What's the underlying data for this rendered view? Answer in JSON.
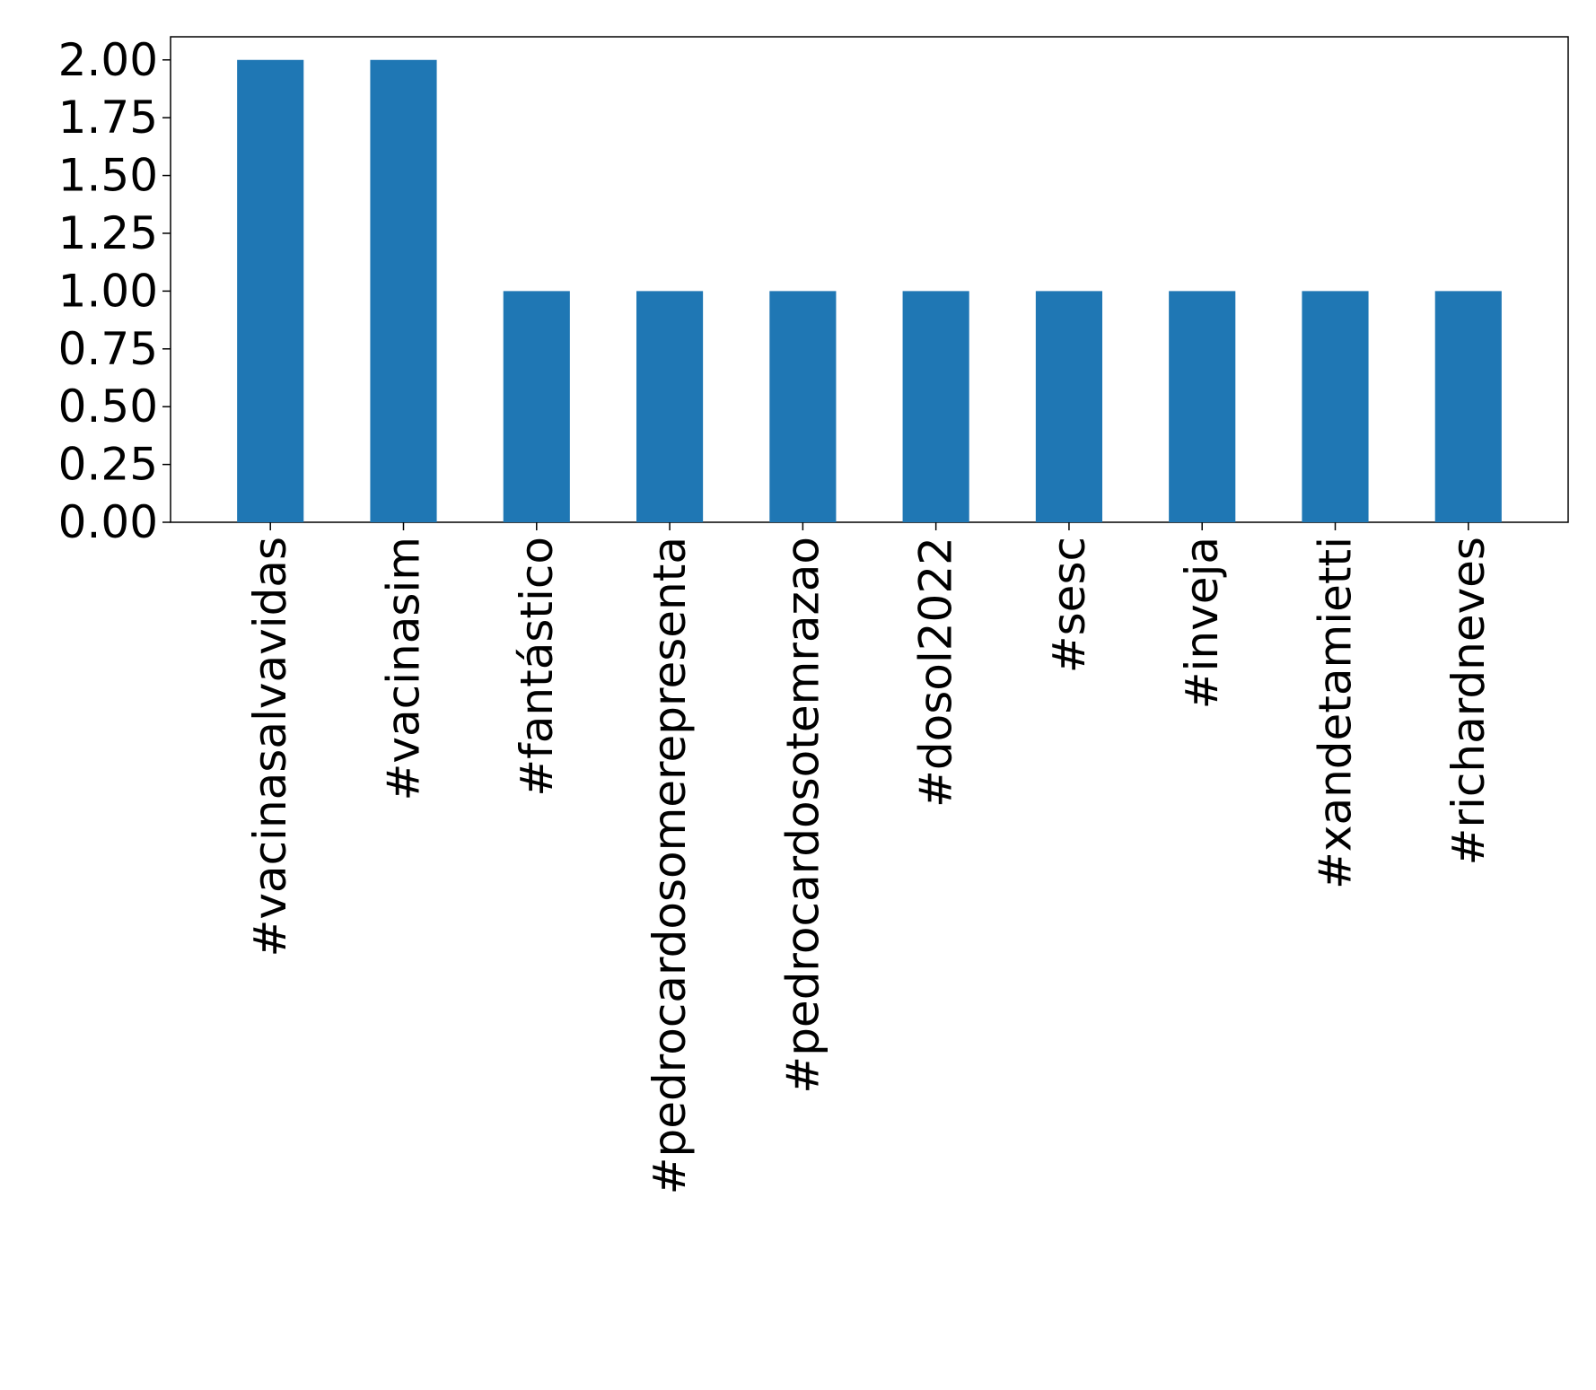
{
  "chart_data": {
    "type": "bar",
    "title": "",
    "xlabel": "",
    "ylabel": "",
    "categories": [
      "#vacinasalvavidas",
      "#vacinasim",
      "#fantástico",
      "#pedrocardosomerepresenta",
      "#pedrocardosotemrazao",
      "#dosol2022",
      "#sesc",
      "#inveja",
      "#xandetamietti",
      "#richardneves"
    ],
    "values": [
      2,
      2,
      1,
      1,
      1,
      1,
      1,
      1,
      1,
      1
    ],
    "ylim": [
      0,
      2.1
    ],
    "yticks": [
      "0.00",
      "0.25",
      "0.50",
      "0.75",
      "1.00",
      "1.25",
      "1.50",
      "1.75",
      "2.00"
    ],
    "bar_color": "#1f77b4",
    "grid": false,
    "legend": "none"
  }
}
